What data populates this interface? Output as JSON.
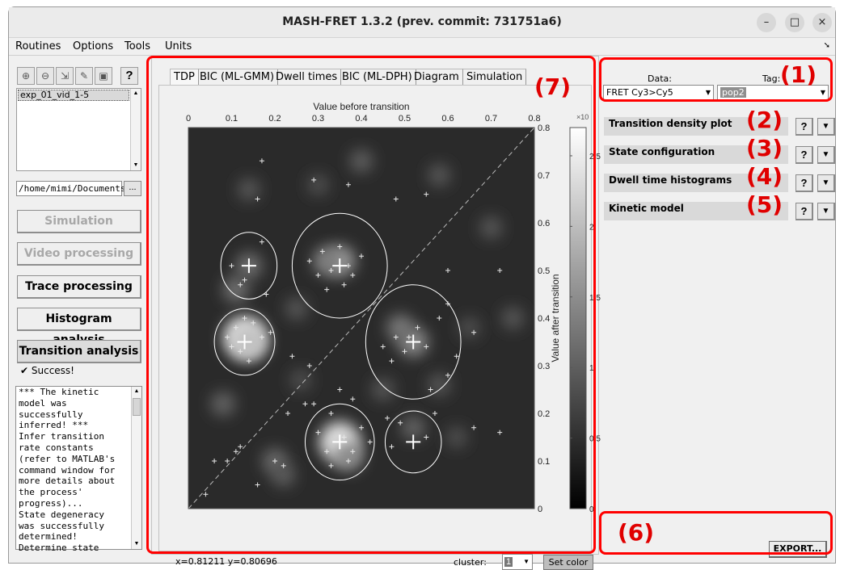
{
  "window": {
    "title": "MASH-FRET 1.3.2 (prev. commit: 731751a6)",
    "controls": [
      "–",
      "□",
      "×"
    ]
  },
  "menu": [
    "Routines",
    "Options",
    "Tools",
    "Units"
  ],
  "left_panel": {
    "toolbar_icons": [
      "add-file-icon",
      "remove-file-icon",
      "export-file-icon",
      "edit-icon",
      "save-icon",
      "help-icon"
    ],
    "help_label": "?",
    "project_list": [
      "exp_01_vid_1-5"
    ],
    "path": "/home/mimi/Documents",
    "browse_label": "...",
    "modules": [
      {
        "label": "Simulation",
        "state": "disabled"
      },
      {
        "label": "Video processing",
        "state": "disabled"
      },
      {
        "label": "Trace processing",
        "state": "normal"
      },
      {
        "label": "Histogram analysis",
        "state": "normal"
      },
      {
        "label": "Transition analysis",
        "state": "active"
      }
    ],
    "status": "✔ Success!",
    "log": "*** The kinetic\nmodel was\nsuccessfully\ninferred! ***\nInfer transition\nrate constants\n(refer to MATLAB's\ncommand window for\nmore details about\nthe process'\nprogress)...\nState degeneracy\nwas successfully\ndetermined!\nDetermine state"
  },
  "tabs": [
    "TDP",
    "BIC (ML-GMM)",
    "Dwell times",
    "BIC (ML-DPH)",
    "Diagram",
    "Simulation"
  ],
  "active_tab": "TDP",
  "plot": {
    "coord_readout": "x=0.81211 y=0.80696",
    "cluster_label": "cluster:",
    "cluster_value": "1",
    "set_color_label": "Set color"
  },
  "chart_data": {
    "type": "heatmap",
    "xlabel": "Value before transition",
    "ylabel": "Value after transition",
    "xlim": [
      0,
      0.8
    ],
    "ylim": [
      0,
      0.8
    ],
    "xticks": [
      "0",
      "0.1",
      "0.2",
      "0.3",
      "0.4",
      "0.5",
      "0.6",
      "0.7",
      "0.8"
    ],
    "yticks": [
      "0",
      "0.1",
      "0.2",
      "0.3",
      "0.4",
      "0.5",
      "0.6",
      "0.7",
      "0.8"
    ],
    "colorbar": {
      "ticks": [
        "0",
        "0.5",
        "1",
        "1.5",
        "2",
        "2.5"
      ],
      "exponent": "×10",
      "range": [
        0,
        2.7
      ],
      "colormap": "gray"
    },
    "diagonal": true,
    "cluster_centers": [
      {
        "x": 0.14,
        "y": 0.51
      },
      {
        "x": 0.35,
        "y": 0.51
      },
      {
        "x": 0.13,
        "y": 0.35
      },
      {
        "x": 0.52,
        "y": 0.35
      },
      {
        "x": 0.35,
        "y": 0.14
      },
      {
        "x": 0.52,
        "y": 0.14
      }
    ],
    "blobs": [
      {
        "x": 0.13,
        "y": 0.36,
        "w": 2.6
      },
      {
        "x": 0.14,
        "y": 0.35,
        "w": 2.0
      },
      {
        "x": 0.35,
        "y": 0.52,
        "w": 1.4
      },
      {
        "x": 0.32,
        "y": 0.52,
        "w": 1.0
      },
      {
        "x": 0.35,
        "y": 0.14,
        "w": 2.5
      },
      {
        "x": 0.37,
        "y": 0.11,
        "w": 1.2
      },
      {
        "x": 0.52,
        "y": 0.35,
        "w": 1.2
      },
      {
        "x": 0.49,
        "y": 0.38,
        "w": 0.9
      },
      {
        "x": 0.14,
        "y": 0.51,
        "w": 0.8
      },
      {
        "x": 0.11,
        "y": 0.46,
        "w": 0.8
      },
      {
        "x": 0.52,
        "y": 0.17,
        "w": 0.6
      },
      {
        "x": 0.2,
        "y": 0.1,
        "w": 0.7
      },
      {
        "x": 0.22,
        "y": 0.07,
        "w": 0.5
      },
      {
        "x": 0.08,
        "y": 0.22,
        "w": 0.6
      },
      {
        "x": 0.25,
        "y": 0.42,
        "w": 0.4
      },
      {
        "x": 0.4,
        "y": 0.73,
        "w": 0.5
      },
      {
        "x": 0.58,
        "y": 0.7,
        "w": 0.4
      },
      {
        "x": 0.14,
        "y": 0.67,
        "w": 0.4
      },
      {
        "x": 0.7,
        "y": 0.59,
        "w": 0.4
      },
      {
        "x": 0.45,
        "y": 0.25,
        "w": 0.4
      },
      {
        "x": 0.58,
        "y": 0.26,
        "w": 0.4
      },
      {
        "x": 0.75,
        "y": 0.4,
        "w": 0.4
      },
      {
        "x": 0.62,
        "y": 0.15,
        "w": 0.3
      },
      {
        "x": 0.3,
        "y": 0.68,
        "w": 0.3
      },
      {
        "x": 0.65,
        "y": 0.38,
        "w": 0.3
      },
      {
        "x": 0.26,
        "y": 0.27,
        "w": 0.3
      }
    ],
    "points": [
      [
        0.17,
        0.73
      ],
      [
        0.29,
        0.69
      ],
      [
        0.37,
        0.68
      ],
      [
        0.48,
        0.65
      ],
      [
        0.55,
        0.66
      ],
      [
        0.16,
        0.65
      ],
      [
        0.1,
        0.51
      ],
      [
        0.13,
        0.48
      ],
      [
        0.17,
        0.56
      ],
      [
        0.18,
        0.45
      ],
      [
        0.12,
        0.47
      ],
      [
        0.28,
        0.52
      ],
      [
        0.3,
        0.49
      ],
      [
        0.33,
        0.5
      ],
      [
        0.36,
        0.47
      ],
      [
        0.38,
        0.49
      ],
      [
        0.31,
        0.54
      ],
      [
        0.35,
        0.55
      ],
      [
        0.4,
        0.53
      ],
      [
        0.32,
        0.46
      ],
      [
        0.37,
        0.51
      ],
      [
        0.09,
        0.36
      ],
      [
        0.11,
        0.38
      ],
      [
        0.15,
        0.39
      ],
      [
        0.12,
        0.33
      ],
      [
        0.17,
        0.36
      ],
      [
        0.1,
        0.34
      ],
      [
        0.14,
        0.31
      ],
      [
        0.19,
        0.37
      ],
      [
        0.13,
        0.4
      ],
      [
        0.45,
        0.34
      ],
      [
        0.48,
        0.36
      ],
      [
        0.5,
        0.33
      ],
      [
        0.53,
        0.38
      ],
      [
        0.55,
        0.34
      ],
      [
        0.47,
        0.31
      ],
      [
        0.51,
        0.36
      ],
      [
        0.58,
        0.4
      ],
      [
        0.62,
        0.32
      ],
      [
        0.66,
        0.37
      ],
      [
        0.6,
        0.43
      ],
      [
        0.24,
        0.32
      ],
      [
        0.28,
        0.3
      ],
      [
        0.23,
        0.2
      ],
      [
        0.27,
        0.22
      ],
      [
        0.06,
        0.1
      ],
      [
        0.11,
        0.12
      ],
      [
        0.12,
        0.13
      ],
      [
        0.2,
        0.1
      ],
      [
        0.22,
        0.09
      ],
      [
        0.16,
        0.05
      ],
      [
        0.04,
        0.03
      ],
      [
        0.09,
        0.1
      ],
      [
        0.29,
        0.22
      ],
      [
        0.33,
        0.2
      ],
      [
        0.35,
        0.25
      ],
      [
        0.38,
        0.23
      ],
      [
        0.3,
        0.16
      ],
      [
        0.32,
        0.12
      ],
      [
        0.36,
        0.15
      ],
      [
        0.38,
        0.12
      ],
      [
        0.4,
        0.17
      ],
      [
        0.42,
        0.14
      ],
      [
        0.33,
        0.09
      ],
      [
        0.37,
        0.1
      ],
      [
        0.46,
        0.19
      ],
      [
        0.49,
        0.18
      ],
      [
        0.47,
        0.13
      ],
      [
        0.55,
        0.15
      ],
      [
        0.57,
        0.2
      ],
      [
        0.66,
        0.17
      ],
      [
        0.72,
        0.16
      ],
      [
        0.6,
        0.5
      ],
      [
        0.72,
        0.5
      ],
      [
        0.56,
        0.25
      ],
      [
        0.6,
        0.28
      ]
    ]
  },
  "right_panel": {
    "data_label": "Data:",
    "tag_label": "Tag:",
    "data_value": "FRET Cy3>Cy5",
    "tag_value": "pop2",
    "panels": [
      {
        "title": "Transition density plot",
        "marker": "(2)"
      },
      {
        "title": "State configuration",
        "marker": "(3)"
      },
      {
        "title": "Dwell time histograms",
        "marker": "(4)"
      },
      {
        "title": "Kinetic model",
        "marker": "(5)"
      }
    ],
    "help_label": "?",
    "expand_label": "▼",
    "export_label": "EXPORT..."
  },
  "annotations": {
    "marker_1": "(1)",
    "marker_6": "(6)",
    "marker_7": "(7)",
    "color": "#ff0000"
  }
}
